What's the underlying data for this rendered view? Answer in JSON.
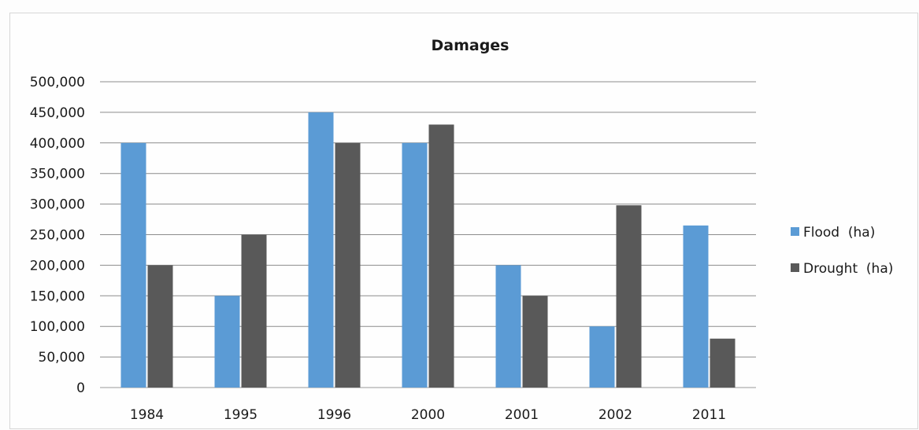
{
  "chart_data": {
    "type": "bar",
    "title": "Damages",
    "xlabel": "",
    "ylabel": "",
    "categories": [
      "1984",
      "1995",
      "1996",
      "2000",
      "2001",
      "2002",
      "2011"
    ],
    "series": [
      {
        "name": "Flood  (ha)",
        "values": [
          400000,
          150000,
          450000,
          400000,
          200000,
          100000,
          265000
        ],
        "color": "#5b9bd5"
      },
      {
        "name": "Drought  (ha)",
        "values": [
          200000,
          250000,
          400000,
          430000,
          150000,
          298000,
          80000
        ],
        "color": "#595959"
      }
    ],
    "ylim": [
      0,
      500000
    ],
    "yticks": [
      0,
      50000,
      100000,
      150000,
      200000,
      250000,
      300000,
      350000,
      400000,
      450000,
      500000
    ],
    "ytick_labels": [
      "0",
      "50,000",
      "100,000",
      "150,000",
      "200,000",
      "250,000",
      "300,000",
      "350,000",
      "400,000",
      "450,000",
      "500,000"
    ],
    "grid": true,
    "legend_position": "right"
  }
}
